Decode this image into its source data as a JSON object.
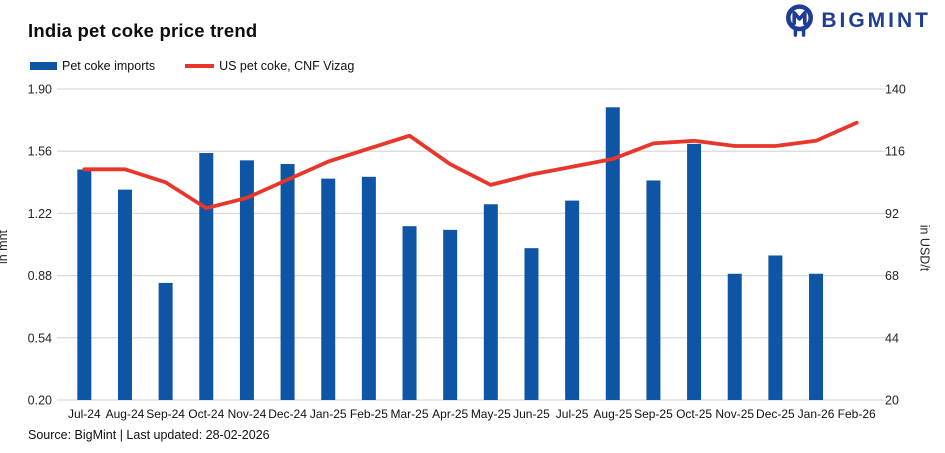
{
  "header": {
    "title": "India pet coke price trend",
    "logo_text": "BIGMINT",
    "logo_color": "#1e3d96"
  },
  "legend": [
    {
      "label": "Pet coke imports",
      "marker": "bar",
      "color": "#0f55a5"
    },
    {
      "label": "US pet coke, CNF Vizag",
      "marker": "line",
      "color": "#e8362b"
    }
  ],
  "footer": {
    "source": "Source: BigMint | Last updated: 28-02-2026"
  },
  "chart_data": {
    "type": "bar+line combo",
    "title": "India pet coke price trend",
    "grid": true,
    "legend_position": "top-left",
    "categories": [
      "Jul-24",
      "Aug-24",
      "Sep-24",
      "Oct-24",
      "Nov-24",
      "Dec-24",
      "Jan-25",
      "Feb-25",
      "Mar-25",
      "Apr-25",
      "May-25",
      "Jun-25",
      "Jul-25",
      "Aug-25",
      "Sep-25",
      "Oct-25",
      "Nov-25",
      "Dec-25",
      "Jan-26",
      "Feb-26"
    ],
    "series": [
      {
        "name": "Pet coke imports",
        "type": "bar",
        "axis": "left",
        "color": "#0f55a5",
        "values": [
          1.46,
          1.35,
          0.84,
          1.55,
          1.51,
          1.49,
          1.41,
          1.42,
          1.15,
          1.13,
          1.27,
          1.03,
          1.29,
          1.8,
          1.4,
          1.6,
          0.89,
          0.99,
          0.89,
          null
        ]
      },
      {
        "name": "US pet coke, CNF Vizag",
        "type": "line",
        "axis": "right",
        "color": "#e8362b",
        "values": [
          109,
          109,
          104,
          94,
          98,
          105,
          112,
          117,
          122,
          111,
          103,
          107,
          110,
          113,
          119,
          120,
          118,
          118,
          120,
          127
        ]
      }
    ],
    "left_axis": {
      "label": "in mnt",
      "min": 0.2,
      "max": 1.9,
      "ticks": [
        "1.90",
        "1.56",
        "1.22",
        "0.88",
        "0.54",
        "0.20"
      ]
    },
    "right_axis": {
      "label": "in USD/t",
      "min": 20,
      "max": 140,
      "ticks": [
        "140",
        "116",
        "92",
        "68",
        "44",
        "20"
      ]
    },
    "grid_color": "#d9d9d9"
  }
}
